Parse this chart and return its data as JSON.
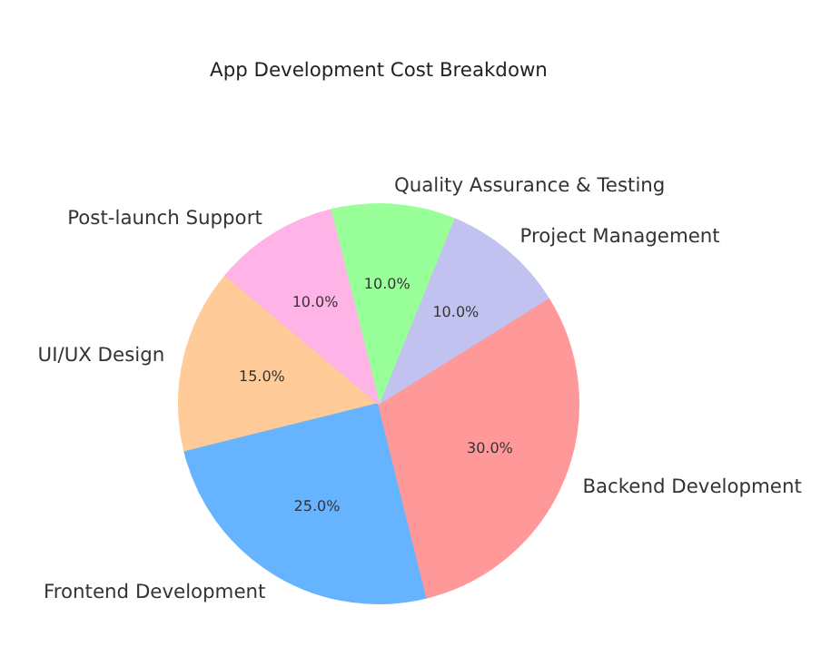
{
  "chart_data": {
    "type": "pie",
    "title": "App Development Cost Breakdown",
    "categories": [
      "UI/UX Design",
      "Frontend Development",
      "Backend Development",
      "Project Management",
      "Quality Assurance & Testing",
      "Post-launch Support"
    ],
    "values": [
      15,
      25,
      30,
      10,
      10,
      10
    ],
    "colors": [
      "#ffcc99",
      "#66b3ff",
      "#ff9999",
      "#c2c2f0",
      "#99ff99",
      "#ffb3e6"
    ],
    "value_labels": [
      "15.0%",
      "25.0%",
      "30.0%",
      "10.0%",
      "10.0%",
      "10.0%"
    ]
  }
}
